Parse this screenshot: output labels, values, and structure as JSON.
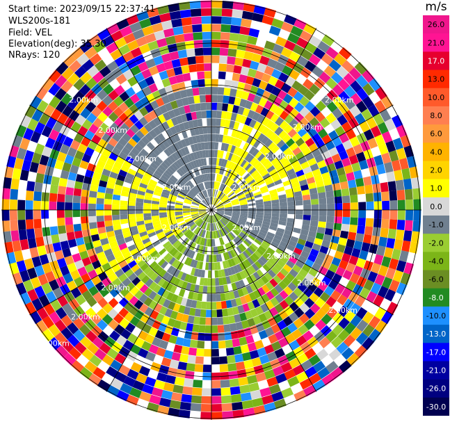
{
  "header": {
    "start_time": "Start time: 2023/09/15 22:37:41",
    "instrument": "WLS200s-181",
    "field": "Field: VEL",
    "elevation": "Elevation(deg): 35.30",
    "nrays": "NRays: 120"
  },
  "colorbar": {
    "unit": "m/s",
    "ticks": [
      "26.0",
      "21.0",
      "17.0",
      "13.0",
      "10.0",
      "8.0",
      "6.0",
      "4.0",
      "2.0",
      "1.0",
      "0.0",
      "-1.0",
      "-2.0",
      "-4.0",
      "-6.0",
      "-8.0",
      "-10.0",
      "-13.0",
      "-17.0",
      "-21.0",
      "-26.0",
      "-30.0"
    ],
    "colors": [
      "#f0168c",
      "#ff1493",
      "#e6002e",
      "#ff2a00",
      "#ff5a2a",
      "#ff7f50",
      "#ff9a3c",
      "#ffb300",
      "#ffd400",
      "#ffff00",
      "#d8d8d8",
      "#708090",
      "#9acd32",
      "#7cb518",
      "#6b8e23",
      "#228b22",
      "#1e90ff",
      "#0064c8",
      "#0000ff",
      "#0000a0",
      "#000080",
      "#000050"
    ]
  },
  "chart_data": {
    "type": "heatmap",
    "projection": "polar PPI",
    "field": "VEL",
    "units": "m/s",
    "vmin": -30.0,
    "vmax": 26.0,
    "nrays": 120,
    "range_ring_labels": [
      "2.00km",
      "2.00km",
      "2.00km",
      "2.00km",
      "2.00km",
      "2.00km",
      "2.00km",
      "2.00km",
      "2.00km",
      "2.00km",
      "2.00km",
      "2.00km",
      "2.00km",
      "2.00km",
      "2.00km",
      "2.00km",
      "2.00km"
    ],
    "dominant_zones": [
      {
        "region": "near range, north-east and west sectors",
        "velocity_class": "1.0 to 2.0"
      },
      {
        "region": "near range, south sector",
        "velocity_class": "-1.0 to -2.0"
      },
      {
        "region": "near range, scattered",
        "velocity_class": "-1.0 to 0.0"
      },
      {
        "region": "far range",
        "velocity_class": "noise, full scale -30.0 to 26.0"
      }
    ]
  }
}
